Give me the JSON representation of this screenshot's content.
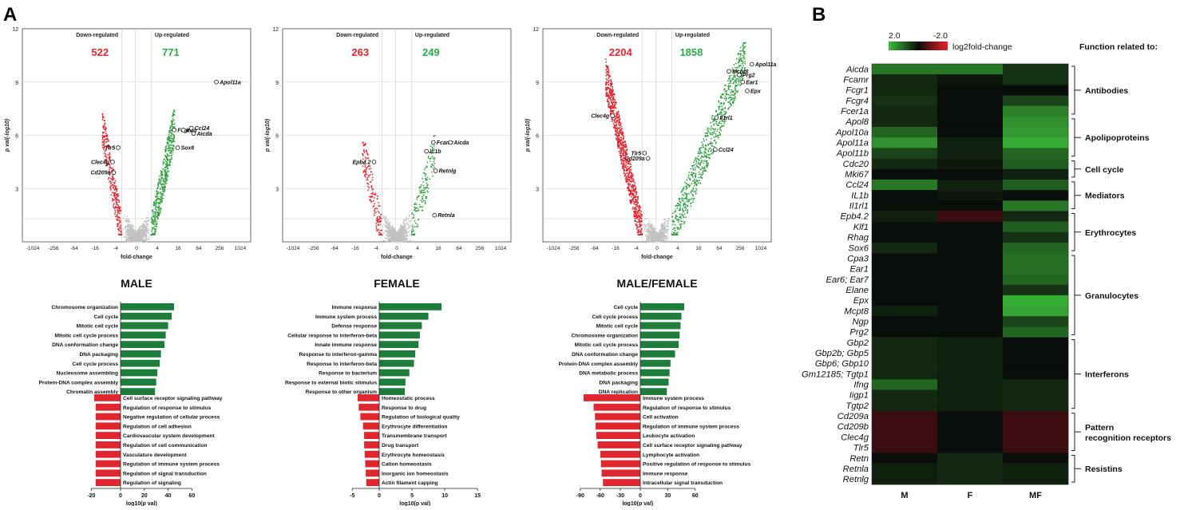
{
  "panel_labels": {
    "a": "A",
    "b": "B"
  },
  "colors": {
    "up": "#2e9e3e",
    "down": "#e0262e",
    "grey": "#c2c2c2",
    "bar_up": "#1f7d3c",
    "bar_down": "#e0262e",
    "down_label": "#e8262e",
    "up_label": "#2da84a"
  },
  "volcano_common": {
    "x_ticks": [
      "-1024",
      "-256",
      "-64",
      "-16",
      "-4",
      "0",
      "4",
      "16",
      "64",
      "256",
      "1024"
    ],
    "y_ticks": [
      "3",
      "6",
      "9",
      "12"
    ],
    "xlabel": "fold-change",
    "ylabel": "p val(-log10)",
    "down_label": "Down-regulated",
    "up_label": "Up-regulated"
  },
  "chart_data": [
    {
      "type": "scatter",
      "name": "volcano-male",
      "title": "MALE",
      "down_count": "522",
      "up_count": "771",
      "xlim": [
        -10,
        10
      ],
      "ylim": [
        0,
        12
      ],
      "labeled_genes": [
        {
          "label": "Apol11a",
          "x": 7.0,
          "y": 9.0
        },
        {
          "label": "Fcgr1",
          "x": 3.3,
          "y": 6.3
        },
        {
          "label": "Ifng",
          "x": 4.1,
          "y": 6.3
        },
        {
          "label": "Ccl24",
          "x": 4.8,
          "y": 6.4
        },
        {
          "label": "Aicda",
          "x": 5.0,
          "y": 6.1
        },
        {
          "label": "Sox6",
          "x": 3.6,
          "y": 5.3
        },
        {
          "label": "Tlr5",
          "x": -1.6,
          "y": 5.3
        },
        {
          "label": "Clec4g",
          "x": -2.1,
          "y": 4.5
        },
        {
          "label": "Cd209a",
          "x": -2.0,
          "y": 3.9
        }
      ]
    },
    {
      "type": "scatter",
      "name": "volcano-female",
      "title": "FEMALE",
      "down_count": "263",
      "up_count": "249",
      "xlim": [
        -10,
        10
      ],
      "ylim": [
        0,
        12
      ],
      "labeled_genes": [
        {
          "label": "Fcamr",
          "x": 3.2,
          "y": 5.6
        },
        {
          "label": "Aicda",
          "x": 4.7,
          "y": 5.6
        },
        {
          "label": "IL1b",
          "x": 2.6,
          "y": 5.1
        },
        {
          "label": "Retnlg",
          "x": 3.4,
          "y": 4.0
        },
        {
          "label": "Epb4.2",
          "x": -2.0,
          "y": 4.5
        },
        {
          "label": "Retnla",
          "x": 3.3,
          "y": 1.5
        }
      ]
    },
    {
      "type": "scatter",
      "name": "volcano-male-female",
      "title": "MALE/FEMALE",
      "down_count": "2204",
      "up_count": "1858",
      "xlim": [
        -10,
        10
      ],
      "ylim": [
        0,
        12
      ],
      "labeled_genes": [
        {
          "label": "Apol11a",
          "x": 8.3,
          "y": 10.0
        },
        {
          "label": "Mcpt8",
          "x": 6.3,
          "y": 9.6
        },
        {
          "label": "Prg2",
          "x": 7.2,
          "y": 9.4
        },
        {
          "label": "Ear1",
          "x": 7.5,
          "y": 9.0
        },
        {
          "label": "Epx",
          "x": 7.9,
          "y": 8.5
        },
        {
          "label": "Il1rl1",
          "x": 5.2,
          "y": 7.0
        },
        {
          "label": "Clec4g",
          "x": -3.9,
          "y": 7.1
        },
        {
          "label": "Ccl24",
          "x": 5.1,
          "y": 5.2
        },
        {
          "label": "Tlr5",
          "x": -1.1,
          "y": 5.0
        },
        {
          "label": "Cd209a",
          "x": -0.8,
          "y": 4.7
        }
      ]
    },
    {
      "type": "bar",
      "name": "go-male",
      "xlabel": "log10(p val)",
      "xlim": [
        -25,
        65
      ],
      "x_ticks": [
        "-20",
        "0",
        "20",
        "40",
        "60"
      ],
      "x_tick_values": [
        -20,
        0,
        20,
        40,
        60
      ],
      "up": {
        "categories": [
          "Chromosome organization",
          "Cell cycle",
          "Mitotic cell cycle",
          "Mitotic cell cycle process",
          "DNA conformation change",
          "DNA packaging",
          "Cell cycle process",
          "Nucleosome assembling",
          "Protein-DNA complex assembly",
          "Chromatin assembly"
        ],
        "values": [
          45,
          43,
          40,
          38,
          37,
          34,
          33,
          31,
          30,
          29
        ]
      },
      "down": {
        "categories": [
          "Cell surface receptor signaling pathway",
          "Regulation of response to stimulus",
          "Negative regulation of cellular process",
          "Regulation of cell adhesion",
          "Cardiovascular system development",
          "Regulation of cell communication",
          "Vasculature development",
          "Regulation of immune system process",
          "Regulation of signal transduction",
          "Regulation of signaling"
        ],
        "values": [
          -18,
          -17,
          -17,
          -17,
          -17,
          -17,
          -17,
          -17,
          -17,
          -17
        ]
      }
    },
    {
      "type": "bar",
      "name": "go-female",
      "xlabel": "log10(p val)",
      "xlim": [
        -6,
        16
      ],
      "x_ticks": [
        "-5",
        "0",
        "5",
        "10",
        "15"
      ],
      "x_tick_values": [
        -5,
        0,
        5,
        10,
        15
      ],
      "up": {
        "categories": [
          "Immune response",
          "Immune system process",
          "Defense response",
          "Cellular response to interferon-beta",
          "Innate immune response",
          "Response to interferon-gamma",
          "Response to interferon-beta",
          "Response to bacterium",
          "Response to external biotic stimulus",
          "Response to other organism"
        ],
        "values": [
          9.5,
          7.5,
          6.5,
          6.2,
          6.0,
          5.5,
          5.3,
          4.6,
          4.0,
          3.9
        ]
      },
      "down": {
        "categories": [
          "Homeostatic process",
          "Response to drug",
          "Regulation of biological quality",
          "Erythrocyte differentiation",
          "Transmembrane transport",
          "Drug transport",
          "Erythrocyte homeostasis",
          "Cation homeostasis",
          "Inorganic ion homeostasis",
          "Actin filament capping"
        ],
        "values": [
          -4.0,
          -3.8,
          -3.5,
          -3.0,
          -2.8,
          -2.8,
          -2.7,
          -2.6,
          -2.5,
          -2.4
        ]
      }
    },
    {
      "type": "bar",
      "name": "go-male-female",
      "xlabel": "log10(p val)",
      "xlim": [
        -100,
        70
      ],
      "x_ticks": [
        "-90",
        "-60",
        "-30",
        "0",
        "30",
        "60"
      ],
      "x_tick_values": [
        -90,
        -60,
        -30,
        0,
        30,
        60
      ],
      "up": {
        "categories": [
          "Cell cycle",
          "Cell cycle process",
          "Mitotic cell cycle",
          "Chromosome organization",
          "Mitotic cell cycle process",
          "DNA conformation change",
          "Protein-DNA complex assembly",
          "DNA metabolic process",
          "DNA packaging",
          "DNA replication"
        ],
        "values": [
          48,
          45,
          44,
          43,
          42,
          38,
          33,
          32,
          31,
          29
        ]
      },
      "down": {
        "categories": [
          "Immune system process",
          "Regulation of response to stimulus",
          "Cell activation",
          "Regulation of immune system process",
          "Leukocyte activation",
          "Cell surface receptor signaling pathway",
          "Lymphocyte activation",
          "Positive regulation of response to stimulus",
          "Immune response",
          "Intracellular signal transduction"
        ],
        "values": [
          -85,
          -70,
          -68,
          -67,
          -66,
          -64,
          -60,
          -59,
          -58,
          -56
        ]
      }
    },
    {
      "type": "heatmap",
      "name": "heatmap-log2fc",
      "legend_min": "2.0",
      "legend_max": "-2.0",
      "legend_title": "log2fold-change",
      "columns": [
        "M",
        "F",
        "MF"
      ],
      "function_header": "Function related to:",
      "genes": [
        "Aicda",
        "Fcamr",
        "Fcgr1",
        "Fcgr4",
        "Fcer1a",
        "Apol8",
        "Apol10a",
        "Apol11a",
        "Apol11b",
        "Cdc20",
        "Mki67",
        "Ccl24",
        "IL1b",
        "Il1rl1",
        "Epb4.2",
        "Klf1",
        "Rhag",
        "Sox6",
        "Cpa3",
        "Ear1",
        "Ear6; Ear7",
        "Elane",
        "Epx",
        "Mcpt8",
        "Ngp",
        "Prg2",
        "Gbp2",
        "Gbp2b; Gbp5",
        "Gbp6; Gbp10",
        "Gm12185; Tgtp1",
        "Ifng",
        "Iigp1",
        "Tgtp2",
        "Cd209a",
        "Cd209b",
        "Clec4g",
        "Tlr5",
        "Retn",
        "Retnla",
        "Retnlg"
      ],
      "values": [
        [
          1.2,
          1.2,
          0.4
        ],
        [
          0.3,
          0.1,
          0.4
        ],
        [
          0.3,
          0.0,
          0.0
        ],
        [
          0.4,
          0.0,
          0.6
        ],
        [
          0.3,
          0.0,
          1.3
        ],
        [
          0.3,
          0.0,
          1.5
        ],
        [
          1.0,
          0.0,
          1.6
        ],
        [
          1.5,
          0.2,
          1.8
        ],
        [
          0.6,
          0.2,
          1.0
        ],
        [
          0.3,
          0.1,
          0.9
        ],
        [
          0.0,
          0.0,
          0.2
        ],
        [
          1.2,
          0.2,
          0.9
        ],
        [
          0.0,
          0.1,
          0.0
        ],
        [
          0.0,
          0.0,
          1.2
        ],
        [
          0.2,
          -0.4,
          0.3
        ],
        [
          0.0,
          0.0,
          0.9
        ],
        [
          0.0,
          0.0,
          0.4
        ],
        [
          0.3,
          0.0,
          1.0
        ],
        [
          0.0,
          0.0,
          1.1
        ],
        [
          0.0,
          0.0,
          1.1
        ],
        [
          0.0,
          0.0,
          1.0
        ],
        [
          0.0,
          0.0,
          0.4
        ],
        [
          0.0,
          0.0,
          1.8
        ],
        [
          0.2,
          0.0,
          1.7
        ],
        [
          0.0,
          0.0,
          0.6
        ],
        [
          0.0,
          0.0,
          1.0
        ],
        [
          0.3,
          0.2,
          0.0
        ],
        [
          0.3,
          0.2,
          0.0
        ],
        [
          0.3,
          0.2,
          0.0
        ],
        [
          0.3,
          0.2,
          0.0
        ],
        [
          1.0,
          0.2,
          0.3
        ],
        [
          0.3,
          0.2,
          0.3
        ],
        [
          0.3,
          0.2,
          0.3
        ],
        [
          -0.4,
          0.0,
          -0.4
        ],
        [
          -0.4,
          0.0,
          -0.4
        ],
        [
          -0.4,
          0.0,
          -0.4
        ],
        [
          -0.4,
          0.0,
          -0.4
        ],
        [
          0.0,
          0.3,
          0.0
        ],
        [
          0.2,
          0.3,
          0.2
        ],
        [
          0.2,
          0.3,
          0.2
        ]
      ],
      "groups": [
        {
          "label": "Antibodies",
          "from": 0,
          "to": 4
        },
        {
          "label": "Apolipoproteins",
          "from": 5,
          "to": 8
        },
        {
          "label": "Cell cycle",
          "from": 9,
          "to": 10
        },
        {
          "label": "Mediators",
          "from": 11,
          "to": 13
        },
        {
          "label": "Erythrocytes",
          "from": 14,
          "to": 17
        },
        {
          "label": "Granulocytes",
          "from": 18,
          "to": 25
        },
        {
          "label": "Interferons",
          "from": 26,
          "to": 32
        },
        {
          "label": "Pattern recognition receptors",
          "from": 33,
          "to": 36
        },
        {
          "label": "Resistins",
          "from": 37,
          "to": 39
        }
      ]
    }
  ]
}
